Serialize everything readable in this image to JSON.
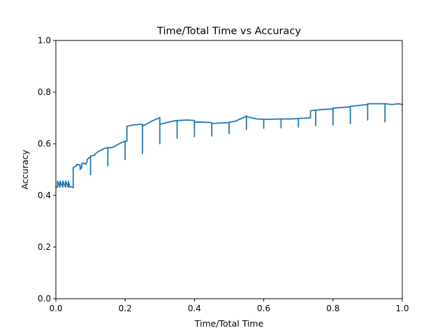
{
  "chart_data": {
    "type": "line",
    "title": "Time/Total Time vs Accuracy",
    "xlabel": "Time/Total Time",
    "ylabel": "Accuracy",
    "xlim": [
      0.0,
      1.0
    ],
    "ylim": [
      0.0,
      1.0
    ],
    "x_ticks": [
      "0.0",
      "0.2",
      "0.4",
      "0.6",
      "0.8",
      "1.0"
    ],
    "y_ticks": [
      "0.0",
      "0.2",
      "0.4",
      "0.6",
      "0.8",
      "1.0"
    ],
    "grid": false,
    "legend": "none",
    "series": [
      {
        "color": "#1f77b4",
        "x": [
          0.0,
          0.005,
          0.005,
          0.012,
          0.012,
          0.02,
          0.02,
          0.028,
          0.028,
          0.036,
          0.036,
          0.04,
          0.045,
          0.05,
          0.05,
          0.06,
          0.06,
          0.07,
          0.07,
          0.075,
          0.075,
          0.08,
          0.085,
          0.09,
          0.09,
          0.095,
          0.1,
          0.1,
          0.1,
          0.11,
          0.12,
          0.13,
          0.14,
          0.15,
          0.15,
          0.15,
          0.16,
          0.17,
          0.18,
          0.19,
          0.2,
          0.2,
          0.2,
          0.205,
          0.205,
          0.22,
          0.24,
          0.25,
          0.25,
          0.25,
          0.26,
          0.28,
          0.295,
          0.3,
          0.3,
          0.3,
          0.32,
          0.34,
          0.35,
          0.35,
          0.35,
          0.38,
          0.4,
          0.4,
          0.4,
          0.42,
          0.45,
          0.45,
          0.45,
          0.47,
          0.5,
          0.5,
          0.5,
          0.52,
          0.53,
          0.54,
          0.55,
          0.55,
          0.55,
          0.56,
          0.58,
          0.6,
          0.6,
          0.6,
          0.62,
          0.65,
          0.65,
          0.65,
          0.68,
          0.7,
          0.7,
          0.7,
          0.73,
          0.735,
          0.735,
          0.75,
          0.75,
          0.75,
          0.77,
          0.8,
          0.8,
          0.8,
          0.82,
          0.84,
          0.85,
          0.85,
          0.85,
          0.87,
          0.9,
          0.9,
          0.9,
          0.92,
          0.95,
          0.95,
          0.95,
          0.97,
          0.99,
          1.0
        ],
        "y": [
          0.432,
          0.432,
          0.455,
          0.432,
          0.455,
          0.432,
          0.455,
          0.432,
          0.455,
          0.432,
          0.455,
          0.433,
          0.433,
          0.43,
          0.508,
          0.515,
          0.52,
          0.518,
          0.5,
          0.51,
          0.525,
          0.525,
          0.52,
          0.53,
          0.538,
          0.545,
          0.548,
          0.48,
          0.553,
          0.555,
          0.568,
          0.575,
          0.582,
          0.585,
          0.515,
          0.585,
          0.585,
          0.59,
          0.598,
          0.605,
          0.61,
          0.54,
          0.61,
          0.61,
          0.668,
          0.672,
          0.675,
          0.675,
          0.562,
          0.668,
          0.675,
          0.69,
          0.698,
          0.702,
          0.6,
          0.675,
          0.682,
          0.688,
          0.69,
          0.622,
          0.69,
          0.692,
          0.69,
          0.628,
          0.684,
          0.684,
          0.682,
          0.63,
          0.678,
          0.68,
          0.682,
          0.64,
          0.683,
          0.688,
          0.695,
          0.7,
          0.708,
          0.655,
          0.705,
          0.702,
          0.696,
          0.695,
          0.66,
          0.695,
          0.695,
          0.696,
          0.662,
          0.696,
          0.696,
          0.698,
          0.665,
          0.698,
          0.7,
          0.7,
          0.728,
          0.73,
          0.67,
          0.73,
          0.733,
          0.735,
          0.673,
          0.738,
          0.74,
          0.742,
          0.742,
          0.678,
          0.745,
          0.748,
          0.752,
          0.692,
          0.755,
          0.755,
          0.755,
          0.685,
          0.755,
          0.752,
          0.755,
          0.752
        ]
      }
    ]
  }
}
